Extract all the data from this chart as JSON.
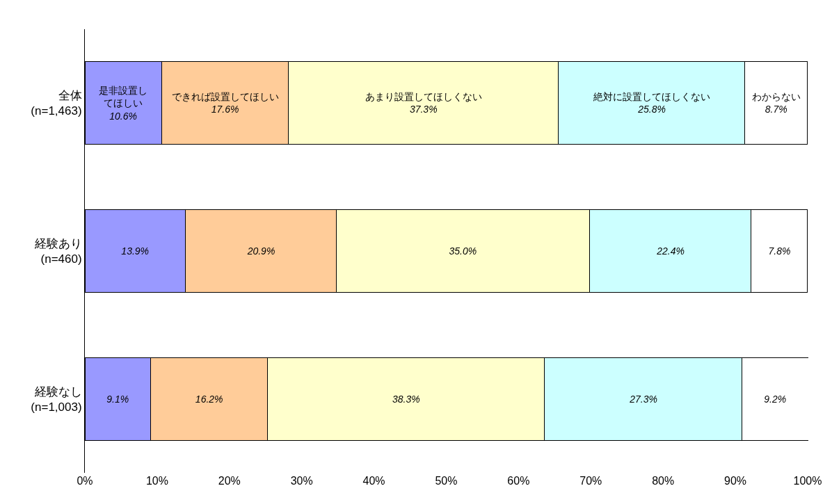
{
  "chart_data": {
    "type": "bar",
    "orientation": "horizontal",
    "stacked": true,
    "categories": [
      "全体\n(n=1,463)",
      "経験あり\n(n=460)",
      "経験なし\n(n=1,003)"
    ],
    "series": [
      {
        "name": "是非設置してほしい",
        "color": "#9999ff",
        "values": [
          10.6,
          13.9,
          9.1
        ],
        "value_labels": [
          "10.6%",
          "13.9%",
          "9.1%"
        ]
      },
      {
        "name": "できれば設置してほしい",
        "color": "#ffcc99",
        "values": [
          17.6,
          20.9,
          16.2
        ],
        "value_labels": [
          "17.6%",
          "20.9%",
          "16.2%"
        ]
      },
      {
        "name": "あまり設置してほしくない",
        "color": "#ffffcc",
        "values": [
          37.3,
          35.0,
          38.3
        ],
        "value_labels": [
          "37.3%",
          "35.0%",
          "38.3%"
        ]
      },
      {
        "name": "絶対に設置してほしくない",
        "color": "#ccffff",
        "values": [
          25.8,
          22.4,
          27.3
        ],
        "value_labels": [
          "25.8%",
          "22.4%",
          "27.3%"
        ]
      },
      {
        "name": "わからない",
        "color": "#ffffff",
        "values": [
          8.7,
          7.8,
          9.2
        ],
        "value_labels": [
          "8.7%",
          "7.8%",
          "9.2%"
        ]
      }
    ],
    "xlim": [
      0,
      100.1
    ],
    "xticks": [
      {
        "value": 0,
        "label": "0%"
      },
      {
        "value": 10,
        "label": "10%"
      },
      {
        "value": 20,
        "label": "20%"
      },
      {
        "value": 30,
        "label": "30%"
      },
      {
        "value": 40,
        "label": "40%"
      },
      {
        "value": 50,
        "label": "50%"
      },
      {
        "value": 60,
        "label": "60%"
      },
      {
        "value": 70,
        "label": "70%"
      },
      {
        "value": 80,
        "label": "80%"
      },
      {
        "value": 90,
        "label": "90%"
      },
      {
        "value": 100,
        "label": "100%"
      }
    ],
    "grid": false,
    "legend": false
  }
}
